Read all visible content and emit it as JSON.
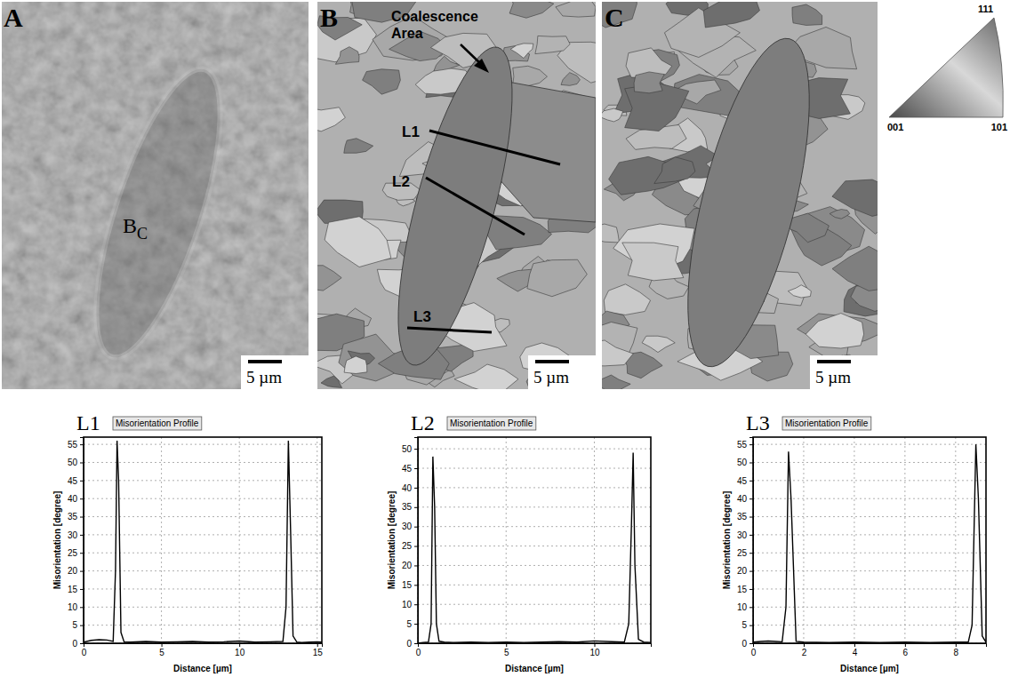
{
  "panels": {
    "A": {
      "letter": "A",
      "label": "B",
      "label_subscript": "C",
      "scale_bar": "5 µm"
    },
    "B": {
      "letter": "B",
      "annotation": "Coalescence Area",
      "lines": [
        "L1",
        "L2",
        "L3"
      ],
      "scale_bar": "5 µm"
    },
    "C": {
      "letter": "C",
      "scale_bar": "5 µm"
    },
    "ipf": {
      "corners": [
        "111",
        "001",
        "101"
      ]
    }
  },
  "chart_data": [
    {
      "type": "line",
      "panel_label": "L1",
      "title": "Misorientation Profile",
      "x_label": "Distance [µm]",
      "y_label": "Misorientation [degree]",
      "xlim": [
        0,
        15.3
      ],
      "ylim": [
        0,
        57
      ],
      "xticks": [
        0,
        5,
        10,
        15
      ],
      "yticks": [
        0,
        5,
        10,
        15,
        20,
        25,
        30,
        35,
        40,
        45,
        50,
        55
      ],
      "grid": true,
      "color": "#000000",
      "x": [
        0,
        0.5,
        1,
        1.5,
        1.9,
        2.05,
        2.15,
        2.25,
        2.4,
        2.6,
        3,
        4,
        5,
        6,
        7,
        8,
        9,
        10,
        11,
        12,
        12.8,
        13.0,
        13.15,
        13.3,
        13.45,
        13.7,
        14,
        14.5,
        15,
        15.3
      ],
      "values": [
        0.3,
        0.8,
        1.0,
        0.9,
        0.5,
        20,
        56,
        45,
        3,
        0.4,
        0.3,
        0.5,
        0.3,
        0.4,
        0.5,
        0.3,
        0.4,
        0.6,
        0.3,
        0.4,
        0.5,
        10,
        56,
        30,
        2,
        0.3,
        0.2,
        0.3,
        0.4,
        0.3
      ]
    },
    {
      "type": "line",
      "panel_label": "L2",
      "title": "Misorientation Profile",
      "x_label": "Distance [µm]",
      "y_label": "Misorientation [degree]",
      "xlim": [
        0,
        13.2
      ],
      "ylim": [
        0,
        53
      ],
      "xticks": [
        0,
        5,
        10
      ],
      "yticks": [
        0,
        5,
        10,
        15,
        20,
        25,
        30,
        35,
        40,
        45,
        50
      ],
      "grid": true,
      "color": "#000000",
      "x": [
        0,
        0.3,
        0.6,
        0.75,
        0.85,
        0.95,
        1.05,
        1.2,
        1.5,
        2,
        3,
        4,
        5,
        6,
        7,
        8,
        9,
        10,
        11,
        11.7,
        11.95,
        12.1,
        12.2,
        12.3,
        12.5,
        12.8,
        13.2
      ],
      "values": [
        0,
        0.2,
        0.3,
        5,
        48,
        35,
        5,
        0.5,
        0.3,
        0.2,
        0.3,
        0.2,
        0.3,
        0.2,
        0.3,
        0.4,
        0.3,
        0.6,
        0.4,
        0.3,
        5,
        30,
        49,
        20,
        1,
        0.3,
        0.2
      ]
    },
    {
      "type": "line",
      "panel_label": "L3",
      "title": "Misorientation Profile",
      "x_label": "Distance [µm]",
      "y_label": "Misorientation [degree]",
      "xlim": [
        0,
        9.2
      ],
      "ylim": [
        0,
        57
      ],
      "xticks": [
        0,
        2,
        4,
        6,
        8
      ],
      "yticks": [
        0,
        5,
        10,
        15,
        20,
        25,
        30,
        35,
        40,
        45,
        50,
        55
      ],
      "grid": true,
      "color": "#000000",
      "x": [
        0,
        0.3,
        0.6,
        0.9,
        1.15,
        1.3,
        1.4,
        1.5,
        1.7,
        2,
        3,
        4,
        5,
        6,
        7,
        8,
        8.5,
        8.65,
        8.8,
        8.9,
        9.05,
        9.2
      ],
      "values": [
        0.3,
        0.5,
        0.6,
        0.5,
        0.4,
        10,
        53,
        40,
        0.5,
        0.3,
        0.2,
        0.3,
        0.2,
        0.3,
        0.2,
        0.3,
        0.3,
        5,
        55,
        40,
        2,
        0.3
      ]
    }
  ]
}
